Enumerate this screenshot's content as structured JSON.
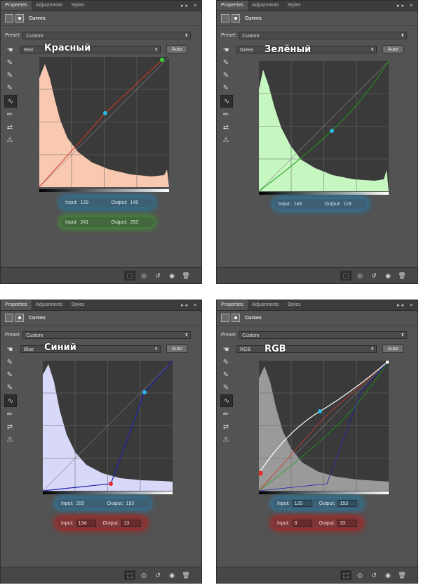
{
  "common": {
    "tabs": [
      "Properties",
      "Adjustments",
      "Styles"
    ],
    "tab_controls": "▸▸  ≡",
    "panel_title": "Curves",
    "preset_label": "Preset:",
    "preset_value": "Custom",
    "auto_label": "Auto",
    "io_input_label": "Input:",
    "io_output_label": "Output:"
  },
  "panels": [
    {
      "id": "red",
      "channel": "Red",
      "overlay_label": "Красный",
      "histogram_color": "#f8c8b0",
      "curve_color": "#d23a2a",
      "readouts": [
        {
          "input": "129",
          "output": "145",
          "glow": "blue"
        },
        {
          "input": "241",
          "output": "253",
          "glow": "green"
        }
      ]
    },
    {
      "id": "green",
      "channel": "Green",
      "overlay_label": "Зелёный",
      "histogram_color": "#c6f7c0",
      "curve_color": "#1a9a1a",
      "readouts": [
        {
          "input": "143",
          "output": "118",
          "glow": "blue"
        }
      ]
    },
    {
      "id": "blue",
      "channel": "Blue",
      "overlay_label": "Синий",
      "histogram_color": "#d8d8f8",
      "curve_color": "#2020b0",
      "readouts": [
        {
          "input": "200",
          "output": "193",
          "glow": "blue"
        },
        {
          "input": "134",
          "output": "13",
          "glow": "red"
        }
      ]
    },
    {
      "id": "rgb",
      "channel": "RGB",
      "overlay_label": "RGB",
      "histogram_color": "#9a9a9a",
      "curve_color": "#ffffff",
      "readouts": [
        {
          "input": "120",
          "output": "153",
          "glow": "blue"
        },
        {
          "input": "0",
          "output": "33",
          "glow": "red"
        }
      ]
    }
  ]
}
